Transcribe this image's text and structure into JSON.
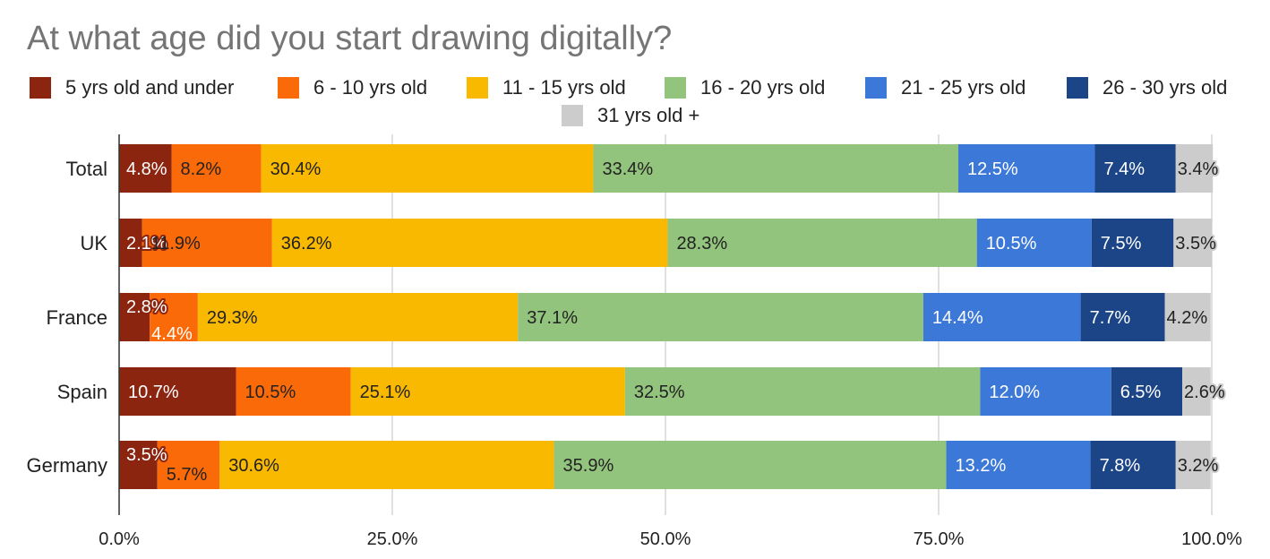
{
  "chart_data": {
    "type": "bar",
    "orientation": "horizontal",
    "stacked": true,
    "title": "At what age did you start drawing digitally?",
    "categories": [
      "Total",
      "UK",
      "France",
      "Spain",
      "Germany"
    ],
    "series": [
      {
        "name": "5 yrs old and under",
        "color": "#8b2510",
        "label_color": "#ffffff",
        "values": [
          4.8,
          2.1,
          2.8,
          10.7,
          3.5
        ],
        "labels": [
          "4.8%",
          "2.1%",
          "2.8%",
          "10.7%",
          "3.5%"
        ]
      },
      {
        "name": "6 - 10 yrs old",
        "color": "#fb6a08",
        "label_color": "#222222",
        "values": [
          8.2,
          11.9,
          4.4,
          10.5,
          5.7
        ],
        "labels": [
          "8.2%",
          "11.9%",
          "4.4%",
          "10.5%",
          "5.7%"
        ]
      },
      {
        "name": "11 - 15 yrs old",
        "color": "#f9b900",
        "label_color": "#222222",
        "values": [
          30.4,
          36.2,
          29.3,
          25.1,
          30.6
        ],
        "labels": [
          "30.4%",
          "36.2%",
          "29.3%",
          "25.1%",
          "30.6%"
        ]
      },
      {
        "name": "16 - 20 yrs old",
        "color": "#93c47d",
        "label_color": "#222222",
        "values": [
          33.4,
          28.3,
          37.1,
          32.5,
          35.9
        ],
        "labels": [
          "33.4%",
          "28.3%",
          "37.1%",
          "32.5%",
          "35.9%"
        ]
      },
      {
        "name": "21 - 25 yrs old",
        "color": "#3c78d8",
        "label_color": "#ffffff",
        "values": [
          12.5,
          10.5,
          14.4,
          12.0,
          13.2
        ],
        "labels": [
          "12.5%",
          "10.5%",
          "14.4%",
          "12.0%",
          "13.2%"
        ]
      },
      {
        "name": "26 - 30 yrs old",
        "color": "#1c4587",
        "label_color": "#ffffff",
        "values": [
          7.4,
          7.5,
          7.7,
          6.5,
          7.8
        ],
        "labels": [
          "7.4%",
          "7.5%",
          "7.7%",
          "6.5%",
          "7.8%"
        ]
      },
      {
        "name": "31 yrs old +",
        "color": "#cccccc",
        "label_color": "#222222",
        "values": [
          3.4,
          3.5,
          4.2,
          2.6,
          3.2
        ],
        "labels": [
          "3.4%",
          "3.5%",
          "4.2%",
          "2.6%",
          "3.2%"
        ]
      }
    ],
    "xlim": [
      0,
      100
    ],
    "xticks": [
      0,
      25,
      50,
      75,
      100
    ],
    "xtick_labels": [
      "0.0%",
      "25.0%",
      "50.0%",
      "75.0%",
      "100.0%"
    ],
    "grid": true,
    "legend_position": "top"
  }
}
